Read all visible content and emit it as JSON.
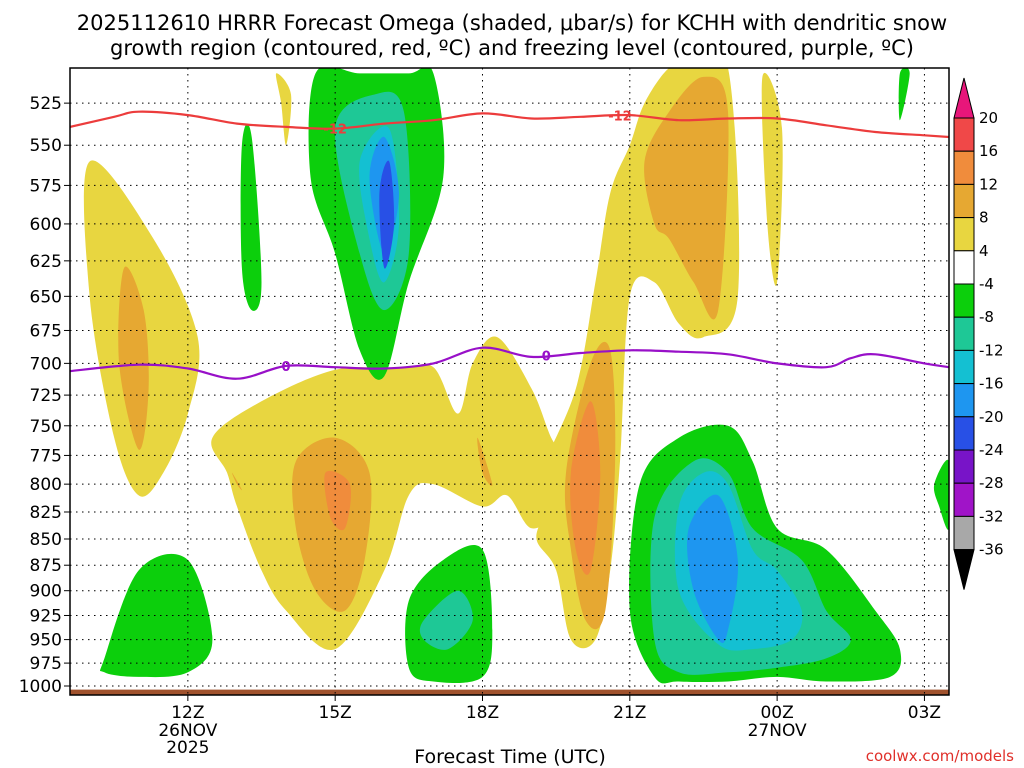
{
  "chart_data": {
    "type": "heatmap",
    "title_line1": "2025112610 HRRR Forecast Omega (shaded, μbar/s) for KCHH with dendritic snow",
    "title_line2": "growth region (contoured, red, ºC) and freezing level (contoured, purple, ºC)",
    "xlabel": "Forecast Time (UTC)",
    "x_range_hours": [
      9.6,
      27.5
    ],
    "x_ticks": [
      {
        "hour": 12,
        "label": "12Z",
        "sub1": "26NOV",
        "sub2": "2025"
      },
      {
        "hour": 15,
        "label": "15Z",
        "sub1": "",
        "sub2": ""
      },
      {
        "hour": 18,
        "label": "18Z",
        "sub1": "",
        "sub2": ""
      },
      {
        "hour": 21,
        "label": "21Z",
        "sub1": "",
        "sub2": ""
      },
      {
        "hour": 24,
        "label": "00Z",
        "sub1": "27NOV",
        "sub2": ""
      },
      {
        "hour": 27,
        "label": "03Z",
        "sub1": "",
        "sub2": ""
      }
    ],
    "y_range_hpa": [
      1010,
      505
    ],
    "y_scale": "log-pressure",
    "y_ticks": [
      525,
      550,
      575,
      600,
      625,
      650,
      675,
      700,
      725,
      750,
      775,
      800,
      825,
      850,
      875,
      900,
      925,
      950,
      975,
      1000
    ],
    "colorbar": {
      "labels": [
        "20",
        "16",
        "12",
        "8",
        "4",
        "-4",
        "-8",
        "-12",
        "-16",
        "-20",
        "-24",
        "-28",
        "-32",
        "-36"
      ],
      "levels": [
        20,
        16,
        12,
        8,
        4,
        -4,
        -8,
        -12,
        -16,
        -20,
        -24,
        -28,
        -32,
        -36
      ],
      "colors": [
        {
          "range": "> 20",
          "color": "#e8167a"
        },
        {
          "range": "16 to 20",
          "color": "#f04848"
        },
        {
          "range": "12 to 16",
          "color": "#f08c3c"
        },
        {
          "range": "8 to 12",
          "color": "#e6a832"
        },
        {
          "range": "4 to 8",
          "color": "#e8d640"
        },
        {
          "range": "-4 to 4",
          "color": "#ffffff"
        },
        {
          "range": "-8 to -4",
          "color": "#0ccf0c"
        },
        {
          "range": "-12 to -8",
          "color": "#1ec896"
        },
        {
          "range": "-16 to -12",
          "color": "#14c0d2"
        },
        {
          "range": "-20 to -16",
          "color": "#1e96f0"
        },
        {
          "range": "-24 to -20",
          "color": "#2850e6"
        },
        {
          "range": "-28 to -24",
          "color": "#7814c8"
        },
        {
          "range": "-32 to -28",
          "color": "#a014c8"
        },
        {
          "range": "-36 to -32",
          "color": "#a8a8a8"
        },
        {
          "range": "< -36",
          "color": "#000000"
        }
      ]
    },
    "series": [
      {
        "name": "Dendritic snow growth region (-12 ºC isotherm)",
        "label": "-12",
        "color": "#ec3c3c",
        "hours": [
          9.6,
          10.5,
          11.0,
          12.0,
          13.0,
          14.0,
          15.0,
          16.0,
          17.0,
          18.0,
          19.0,
          20.0,
          21.0,
          22.0,
          23.0,
          24.0,
          25.0,
          26.0,
          27.0,
          27.5
        ],
        "pressure_hpa": [
          539,
          533,
          530,
          532,
          537,
          539,
          540,
          537,
          535,
          531,
          534,
          533,
          532,
          535,
          534,
          534,
          538,
          542,
          544,
          545
        ]
      },
      {
        "name": "Freezing level (0 ºC isotherm)",
        "label": "0",
        "color": "#9810c8",
        "hours": [
          9.6,
          11.0,
          12.0,
          13.0,
          14.0,
          15.0,
          16.0,
          17.0,
          18.0,
          19.0,
          20.0,
          21.0,
          22.0,
          23.0,
          24.0,
          25.0,
          25.5,
          26.0,
          27.0,
          27.5
        ],
        "pressure_hpa": [
          706,
          701,
          704,
          712,
          702,
          703,
          704,
          700,
          688,
          695,
          692,
          690,
          691,
          693,
          700,
          703,
          696,
          693,
          700,
          703
        ]
      }
    ],
    "omega_regions": [
      {
        "range": "4 to 8",
        "hours": [
          10.0,
          11.3,
          12.2,
          12.0,
          11.5,
          11.0,
          10.5,
          10.0
        ],
        "pressure_hpa": [
          560,
          610,
          680,
          740,
          790,
          810,
          760,
          650
        ]
      },
      {
        "range": "8 to 12",
        "hours": [
          10.7,
          11.1,
          11.2,
          11.0,
          10.6
        ],
        "pressure_hpa": [
          630,
          660,
          720,
          770,
          700
        ]
      },
      {
        "range": "4 to 8",
        "hours": [
          13.8,
          14.1,
          14.0,
          13.9
        ],
        "pressure_hpa": [
          508,
          520,
          550,
          525
        ]
      },
      {
        "range": "4 to 8",
        "hours": [
          12.5,
          13.5,
          15.0,
          16.3,
          17.0,
          17.5,
          17.8,
          18.3,
          19.0,
          19.4,
          19.7,
          19.6,
          19.0,
          18.5,
          18.0,
          17.0,
          16.5,
          16.0,
          15.0,
          14.0,
          13.5,
          13.0,
          12.8
        ],
        "pressure_hpa": [
          760,
          730,
          705,
          704,
          703,
          740,
          700,
          680,
          720,
          760,
          780,
          820,
          840,
          810,
          820,
          800,
          810,
          880,
          960,
          920,
          880,
          820,
          790
        ]
      },
      {
        "range": "8 to 12",
        "hours": [
          14.2,
          15.0,
          15.7,
          15.6,
          15.2,
          14.6,
          14.2
        ],
        "pressure_hpa": [
          780,
          760,
          790,
          870,
          920,
          900,
          840
        ]
      },
      {
        "range": "12 to 16",
        "hours": [
          14.8,
          15.3,
          15.2,
          14.9
        ],
        "pressure_hpa": [
          790,
          800,
          840,
          830
        ]
      },
      {
        "range": "8 to 12",
        "hours": [
          12.9,
          13.1,
          13.0
        ],
        "pressure_hpa": [
          790,
          805,
          800
        ]
      },
      {
        "range": "8 to 12",
        "hours": [
          17.9,
          18.2,
          18.0
        ],
        "pressure_hpa": [
          760,
          800,
          790
        ]
      },
      {
        "range": "4 to 8",
        "hours": [
          19.2,
          19.9,
          20.3,
          20.6,
          21.0,
          21.3,
          21.8,
          22.2,
          23.0,
          23.2,
          22.5,
          22.0,
          21.5,
          21.0,
          20.8,
          20.6,
          20.3,
          19.8,
          19.5,
          19.1,
          19.3
        ],
        "pressure_hpa": [
          790,
          720,
          640,
          580,
          550,
          525,
          505,
          505,
          505,
          650,
          680,
          670,
          640,
          650,
          780,
          880,
          950,
          950,
          880,
          850,
          820
        ]
      },
      {
        "range": "8 to 12",
        "hours": [
          19.7,
          20.2,
          20.6,
          20.7,
          20.5,
          20.1,
          19.8
        ],
        "pressure_hpa": [
          790,
          700,
          690,
          780,
          920,
          930,
          860
        ]
      },
      {
        "range": "12 to 16",
        "hours": [
          19.8,
          20.2,
          20.4,
          20.2,
          19.9
        ],
        "pressure_hpa": [
          790,
          730,
          790,
          880,
          860
        ]
      },
      {
        "range": "8 to 12",
        "hours": [
          21.3,
          21.8,
          22.5,
          23.0,
          22.8,
          22.3,
          21.8,
          21.5
        ],
        "pressure_hpa": [
          560,
          530,
          510,
          530,
          660,
          640,
          610,
          600
        ]
      },
      {
        "range": "4 to 8",
        "hours": [
          23.7,
          24.1,
          24.0,
          23.8
        ],
        "pressure_hpa": [
          510,
          540,
          640,
          600
        ]
      },
      {
        "range": "-8 to -4",
        "hours": [
          14.6,
          15.5,
          16.5,
          17.0,
          17.2,
          16.5,
          16.0,
          15.5,
          15.0,
          14.5
        ],
        "pressure_hpa": [
          508,
          508,
          508,
          508,
          570,
          640,
          710,
          690,
          620,
          570
        ]
      },
      {
        "range": "-12 to -8",
        "hours": [
          15.0,
          15.8,
          16.4,
          16.5,
          16.0,
          15.5
        ],
        "pressure_hpa": [
          540,
          520,
          530,
          620,
          660,
          620
        ]
      },
      {
        "range": "-16 to -12",
        "hours": [
          15.5,
          16.1,
          16.3,
          16.0,
          15.7
        ],
        "pressure_hpa": [
          560,
          540,
          600,
          640,
          610
        ]
      },
      {
        "range": "-20 to -16",
        "hours": [
          15.7,
          16.0,
          16.3,
          16.0
        ],
        "pressure_hpa": [
          570,
          545,
          580,
          620
        ]
      },
      {
        "range": "-24 to -20",
        "hours": [
          15.9,
          16.1,
          16.2,
          16.0
        ],
        "pressure_hpa": [
          580,
          560,
          600,
          630
        ]
      },
      {
        "range": "-8 to -4",
        "hours": [
          13.1,
          13.3,
          13.5,
          13.3,
          13.1
        ],
        "pressure_hpa": [
          550,
          545,
          640,
          660,
          630
        ]
      },
      {
        "range": "-8 to -4",
        "hours": [
          26.5,
          26.7,
          26.5
        ],
        "pressure_hpa": [
          508,
          508,
          535
        ]
      },
      {
        "range": "-8 to -4",
        "hours": [
          27.2,
          27.5,
          27.5,
          27.3
        ],
        "pressure_hpa": [
          800,
          780,
          840,
          820
        ]
      },
      {
        "range": "-8 to -4",
        "hours": [
          21.2,
          22.0,
          23.0,
          23.5,
          24.0,
          25.0,
          26.0,
          26.5,
          26.3,
          25.0,
          24.0,
          23.0,
          22.0,
          21.5,
          21.0
        ],
        "pressure_hpa": [
          800,
          760,
          750,
          780,
          840,
          860,
          920,
          960,
          990,
          995,
          990,
          995,
          995,
          990,
          920
        ]
      },
      {
        "range": "-12 to -8",
        "hours": [
          21.5,
          22.3,
          23.0,
          23.5,
          24.5,
          25.0,
          25.5,
          25.0,
          24.0,
          23.0,
          22.0,
          21.5
        ],
        "pressure_hpa": [
          830,
          780,
          790,
          840,
          870,
          920,
          950,
          970,
          980,
          985,
          985,
          950
        ]
      },
      {
        "range": "-16 to -12",
        "hours": [
          22.0,
          22.5,
          23.0,
          23.5,
          24.0,
          24.5,
          24.3,
          23.5,
          22.8,
          22.0
        ],
        "pressure_hpa": [
          820,
          790,
          800,
          860,
          880,
          920,
          950,
          960,
          955,
          900
        ]
      },
      {
        "range": "-20 to -16",
        "hours": [
          22.2,
          22.8,
          23.2,
          23.0,
          22.8,
          22.3
        ],
        "pressure_hpa": [
          840,
          810,
          870,
          940,
          950,
          900
        ]
      },
      {
        "range": "-8 to -4",
        "hours": [
          10.3,
          11.0,
          12.0,
          12.5,
          12.0,
          11.0,
          10.3
        ],
        "pressure_hpa": [
          970,
          880,
          870,
          950,
          985,
          990,
          985
        ]
      },
      {
        "range": "-8 to -4",
        "hours": [
          16.5,
          17.2,
          18.0,
          18.2,
          18.0,
          17.0,
          16.5
        ],
        "pressure_hpa": [
          910,
          870,
          860,
          940,
          990,
          995,
          980
        ]
      },
      {
        "range": "-12 to -8",
        "hours": [
          16.8,
          17.5,
          17.8,
          17.3,
          16.8
        ],
        "pressure_hpa": [
          930,
          900,
          930,
          960,
          950
        ]
      }
    ]
  },
  "credit": "coolwx.com/models"
}
